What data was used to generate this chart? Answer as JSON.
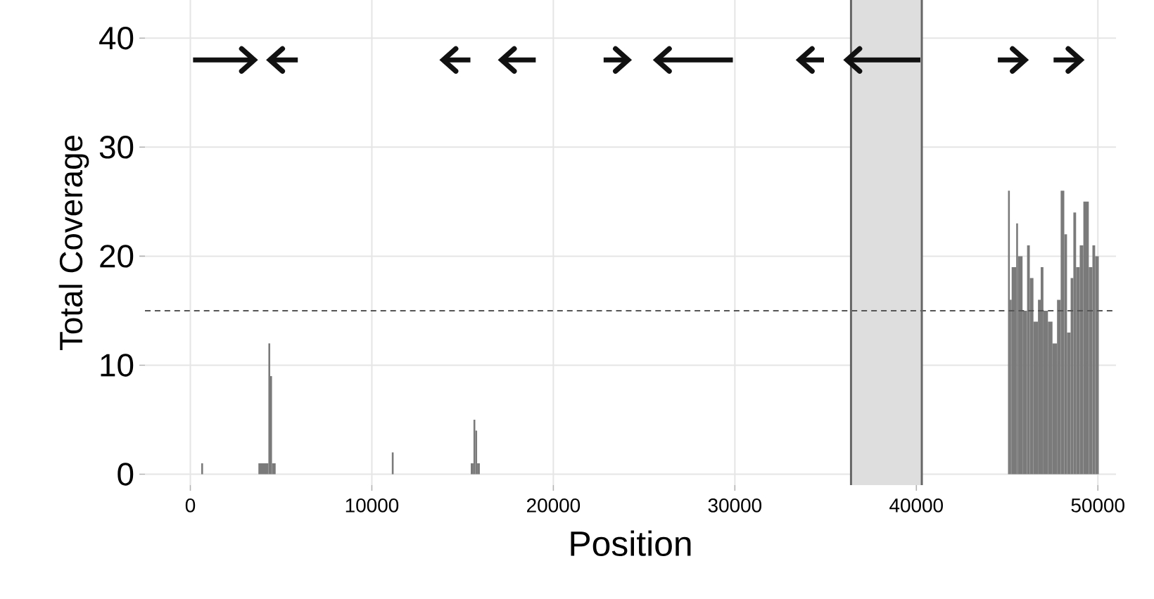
{
  "chart_data": {
    "type": "histogram",
    "xlabel": "Position",
    "ylabel": "Total Coverage",
    "bins": [
      600,
      700,
      3750,
      4300,
      4400,
      4500,
      4700,
      11100,
      11200,
      15450,
      15600,
      15700,
      15800,
      15950,
      45050,
      45150,
      45250,
      45500,
      45600,
      45850,
      46100,
      46250,
      46450,
      46700,
      46850,
      47000,
      47250,
      47500,
      47750,
      47950,
      48150,
      48300,
      48500,
      48650,
      48800,
      49000,
      49200,
      49500,
      49700,
      49850,
      50050
    ],
    "values": [
      1,
      0,
      1,
      12,
      9,
      1,
      0,
      2,
      0,
      1,
      5,
      4,
      1,
      0,
      26,
      16,
      19,
      23,
      20,
      15,
      21,
      18,
      14,
      16,
      19,
      15,
      14,
      12,
      16,
      26,
      22,
      13,
      18,
      24,
      19,
      21,
      25,
      19,
      21,
      20
    ],
    "color": "#7a7a7a",
    "series": [
      {
        "type": "line",
        "color": "#111111",
        "x": [
          150,
          3520
        ],
        "values": [
          38,
          38
        ]
      },
      {
        "type": "line",
        "color": "#111111",
        "x": [
          5920,
          4380
        ],
        "values": [
          38,
          38
        ]
      },
      {
        "type": "line",
        "color": "#111111",
        "x": [
          15430,
          13930
        ],
        "values": [
          38,
          38
        ]
      },
      {
        "type": "line",
        "color": "#111111",
        "x": [
          19030,
          17150
        ],
        "values": [
          38,
          38
        ]
      },
      {
        "type": "line",
        "color": "#111111",
        "x": [
          22770,
          24120
        ],
        "values": [
          38,
          38
        ]
      },
      {
        "type": "line",
        "color": "#111111",
        "x": [
          29890,
          25690
        ],
        "values": [
          38,
          38
        ]
      },
      {
        "type": "line",
        "color": "#111111",
        "x": [
          34910,
          33560
        ],
        "values": [
          38,
          38
        ]
      },
      {
        "type": "line",
        "color": "#111111",
        "x": [
          40220,
          36180
        ],
        "values": [
          38,
          38
        ]
      },
      {
        "type": "line",
        "color": "#111111",
        "x": [
          44490,
          45990
        ],
        "values": [
          38,
          38
        ]
      },
      {
        "type": "line",
        "color": "#111111",
        "x": [
          47560,
          49060
        ],
        "values": [
          38,
          38
        ]
      }
    ],
    "xlim": [
      -2500,
      51000
    ],
    "ylim": [
      -1,
      43.5
    ],
    "xticks": [
      0,
      10000,
      20000,
      30000,
      40000,
      50000
    ],
    "yticks": [
      0,
      10,
      20,
      30,
      40
    ],
    "grid": true,
    "ref_lines": [
      {
        "axis": "y",
        "value": 15,
        "color": "#555555",
        "line_style": "dashed"
      },
      {
        "axis": "x",
        "value": 36400,
        "color": "#666666",
        "line_style": "solid"
      },
      {
        "axis": "x",
        "value": 40300,
        "color": "#666666",
        "line_style": "solid"
      }
    ],
    "bands": [
      {
        "axis": "x",
        "from": 36400,
        "to": 40300,
        "color": "#dedede"
      }
    ]
  }
}
